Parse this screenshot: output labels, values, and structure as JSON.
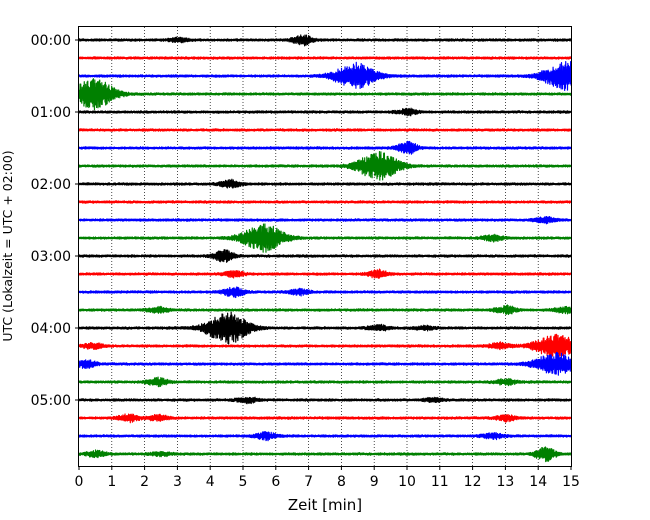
{
  "chart_data": {
    "type": "line",
    "title": "",
    "xlabel": "Zeit  [min]",
    "ylabel": "UTC (Lokalzeit = UTC + 02:00)",
    "xlim": [
      0,
      15
    ],
    "x_ticks": [
      "0",
      "1",
      "2",
      "3",
      "4",
      "5",
      "6",
      "7",
      "8",
      "9",
      "10",
      "11",
      "12",
      "13",
      "14",
      "15"
    ],
    "y_tick_labels": [
      "00:00",
      "01:00",
      "02:00",
      "03:00",
      "04:00",
      "05:00"
    ],
    "grid": "vertical dotted",
    "row_minutes": 15,
    "color_cycle": [
      "#000000",
      "#ff0000",
      "#0000ff",
      "#008000"
    ],
    "baseline_amplitude": 1,
    "rows": [
      {
        "start": "00:00",
        "color": "black",
        "events": [
          {
            "t": 3.0,
            "amp": 2
          },
          {
            "t": 6.8,
            "amp": 5
          }
        ]
      },
      {
        "start": "00:15",
        "color": "red",
        "events": []
      },
      {
        "start": "00:30",
        "color": "blue",
        "events": [
          {
            "t": 8.4,
            "amp": 13
          },
          {
            "t": 14.8,
            "amp": 15
          }
        ]
      },
      {
        "start": "00:45",
        "color": "green",
        "events": [
          {
            "t": 0.4,
            "amp": 16
          }
        ]
      },
      {
        "start": "01:00",
        "color": "black",
        "events": [
          {
            "t": 10.0,
            "amp": 3
          }
        ]
      },
      {
        "start": "01:15",
        "color": "red",
        "events": []
      },
      {
        "start": "01:30",
        "color": "blue",
        "events": [
          {
            "t": 10.0,
            "amp": 6
          }
        ]
      },
      {
        "start": "01:45",
        "color": "green",
        "events": [
          {
            "t": 9.1,
            "amp": 14
          }
        ]
      },
      {
        "start": "02:00",
        "color": "black",
        "events": [
          {
            "t": 4.6,
            "amp": 4
          }
        ]
      },
      {
        "start": "02:15",
        "color": "red",
        "events": []
      },
      {
        "start": "02:30",
        "color": "blue",
        "events": [
          {
            "t": 14.2,
            "amp": 3
          }
        ]
      },
      {
        "start": "02:45",
        "color": "green",
        "events": [
          {
            "t": 5.6,
            "amp": 14
          },
          {
            "t": 12.6,
            "amp": 3
          }
        ]
      },
      {
        "start": "03:00",
        "color": "black",
        "events": [
          {
            "t": 4.4,
            "amp": 6
          }
        ]
      },
      {
        "start": "03:15",
        "color": "red",
        "events": [
          {
            "t": 9.1,
            "amp": 4
          },
          {
            "t": 4.7,
            "amp": 3
          }
        ]
      },
      {
        "start": "03:30",
        "color": "blue",
        "events": [
          {
            "t": 4.7,
            "amp": 5
          },
          {
            "t": 6.7,
            "amp": 3
          }
        ]
      },
      {
        "start": "03:45",
        "color": "green",
        "events": [
          {
            "t": 2.4,
            "amp": 3
          },
          {
            "t": 13.0,
            "amp": 4
          },
          {
            "t": 14.8,
            "amp": 3
          }
        ]
      },
      {
        "start": "04:00",
        "color": "black",
        "events": [
          {
            "t": 4.5,
            "amp": 16
          },
          {
            "t": 9.1,
            "amp": 3
          },
          {
            "t": 10.5,
            "amp": 2
          }
        ]
      },
      {
        "start": "04:15",
        "color": "red",
        "events": [
          {
            "t": 14.5,
            "amp": 12
          },
          {
            "t": 0.4,
            "amp": 3
          },
          {
            "t": 12.8,
            "amp": 3
          }
        ]
      },
      {
        "start": "04:30",
        "color": "blue",
        "events": [
          {
            "t": 14.5,
            "amp": 11
          },
          {
            "t": 0.2,
            "amp": 4
          }
        ]
      },
      {
        "start": "04:45",
        "color": "green",
        "events": [
          {
            "t": 2.4,
            "amp": 4
          },
          {
            "t": 13.0,
            "amp": 3
          }
        ]
      },
      {
        "start": "05:00",
        "color": "black",
        "events": [
          {
            "t": 5.1,
            "amp": 3
          },
          {
            "t": 10.8,
            "amp": 2
          }
        ]
      },
      {
        "start": "05:15",
        "color": "red",
        "events": [
          {
            "t": 1.5,
            "amp": 4
          },
          {
            "t": 2.4,
            "amp": 3
          },
          {
            "t": 13.0,
            "amp": 3
          }
        ]
      },
      {
        "start": "05:30",
        "color": "blue",
        "events": [
          {
            "t": 5.7,
            "amp": 4
          },
          {
            "t": 12.6,
            "amp": 3
          }
        ]
      },
      {
        "start": "05:45",
        "color": "green",
        "events": [
          {
            "t": 14.2,
            "amp": 7
          },
          {
            "t": 0.5,
            "amp": 3
          },
          {
            "t": 2.5,
            "amp": 2
          }
        ]
      }
    ]
  }
}
